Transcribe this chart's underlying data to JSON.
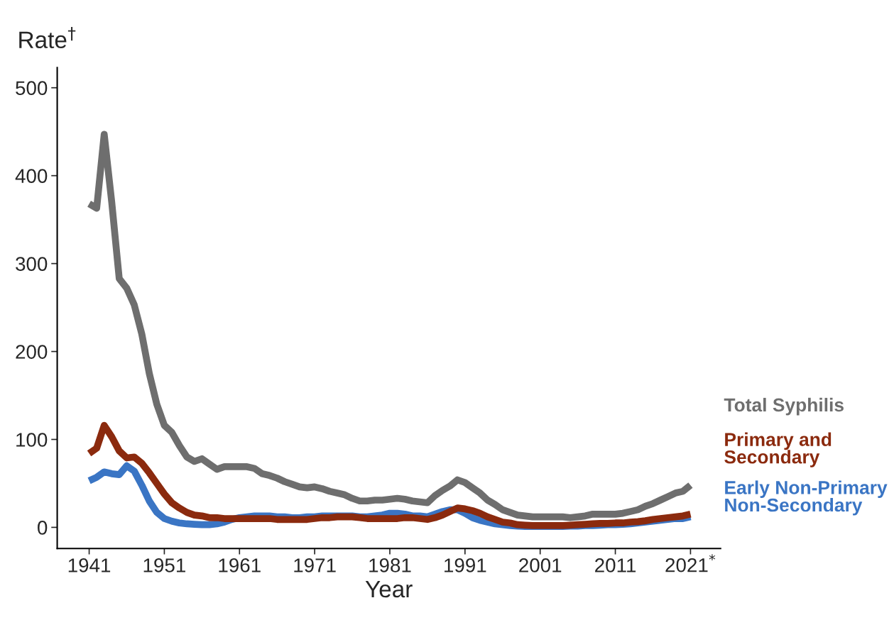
{
  "chart_data": {
    "type": "line",
    "xlabel": "Year",
    "ylabel": "Rate$^{†}$",
    "x": [
      1941,
      1942,
      1943,
      1944,
      1945,
      1946,
      1947,
      1948,
      1949,
      1950,
      1951,
      1952,
      1953,
      1954,
      1955,
      1956,
      1957,
      1958,
      1959,
      1960,
      1961,
      1962,
      1963,
      1964,
      1965,
      1966,
      1967,
      1968,
      1969,
      1970,
      1971,
      1972,
      1973,
      1974,
      1975,
      1976,
      1977,
      1978,
      1979,
      1980,
      1981,
      1982,
      1983,
      1984,
      1985,
      1986,
      1987,
      1988,
      1989,
      1990,
      1991,
      1992,
      1993,
      1994,
      1995,
      1996,
      1997,
      1998,
      1999,
      2000,
      2001,
      2002,
      2003,
      2004,
      2005,
      2006,
      2007,
      2008,
      2009,
      2010,
      2011,
      2012,
      2013,
      2014,
      2015,
      2016,
      2017,
      2018,
      2019,
      2020,
      2021
    ],
    "series": [
      {
        "name": "Total Syphilis",
        "color": "#6e6e6e",
        "values": [
          368,
          363,
          447,
          370,
          283,
          272,
          253,
          220,
          175,
          140,
          116,
          108,
          93,
          80,
          75,
          78,
          72,
          66,
          69,
          69,
          69,
          69,
          67,
          61,
          59,
          56,
          52,
          49,
          46,
          45,
          46,
          44,
          41,
          39,
          37,
          33,
          30,
          30,
          31,
          31,
          32,
          33,
          32,
          30,
          29,
          28,
          36,
          42,
          47,
          54,
          51,
          45,
          39,
          31,
          26,
          20,
          17,
          14,
          13,
          12,
          12,
          12,
          12,
          12,
          11,
          12,
          13,
          15,
          15,
          15,
          15,
          16,
          18,
          20,
          24,
          27,
          31,
          35,
          39,
          41,
          48
        ]
      },
      {
        "name": "Primary and\nSecondary",
        "color": "#8b2a0e",
        "values": [
          84,
          90,
          116,
          103,
          87,
          79,
          80,
          73,
          62,
          50,
          38,
          28,
          22,
          17,
          14,
          13,
          11,
          11,
          10,
          10,
          10,
          10,
          10,
          10,
          10,
          9,
          9,
          9,
          9,
          9,
          10,
          11,
          11,
          12,
          12,
          12,
          11,
          10,
          10,
          10,
          10,
          10,
          11,
          11,
          10,
          9,
          11,
          14,
          18,
          22,
          21,
          19,
          16,
          12,
          9,
          6,
          5,
          3,
          2.5,
          2,
          2,
          2,
          2,
          2,
          2.5,
          3,
          3.5,
          4,
          4.5,
          4.5,
          5,
          5,
          6,
          6.5,
          7.5,
          9,
          10,
          11,
          12,
          13,
          15
        ]
      },
      {
        "name": "Early Non-Primary\nNon-Secondary",
        "color": "#3a75c4",
        "values": [
          53,
          57,
          63,
          61,
          60,
          70,
          64,
          48,
          30,
          17,
          10,
          7,
          5,
          4,
          3.5,
          3,
          3,
          4,
          6,
          9,
          11,
          12,
          13,
          13,
          13,
          12,
          12,
          11,
          11,
          12,
          12,
          13,
          13,
          13,
          13,
          13,
          12,
          12,
          13,
          14,
          16,
          16,
          15,
          13,
          13,
          12,
          15,
          18,
          20,
          20,
          16,
          11,
          8,
          6,
          4,
          3,
          2,
          1.5,
          1,
          1,
          1,
          1,
          1,
          1,
          1.5,
          1.5,
          2,
          2,
          2.5,
          3,
          3,
          3.5,
          4,
          5,
          6,
          7,
          8,
          9,
          10,
          10,
          12
        ]
      }
    ],
    "xlim": [
      1936.75,
      2025
    ],
    "xticks": [
      1941,
      1951,
      1961,
      1971,
      1981,
      1991,
      2001,
      2011,
      {
        "value": 2021,
        "label": "2021$^{*}$"
      }
    ],
    "ylim": [
      -24,
      523
    ],
    "yticks": [
      0,
      100,
      200,
      300,
      400,
      500
    ],
    "grid": false,
    "legend": false,
    "marker": "none",
    "line_style": "solid"
  }
}
